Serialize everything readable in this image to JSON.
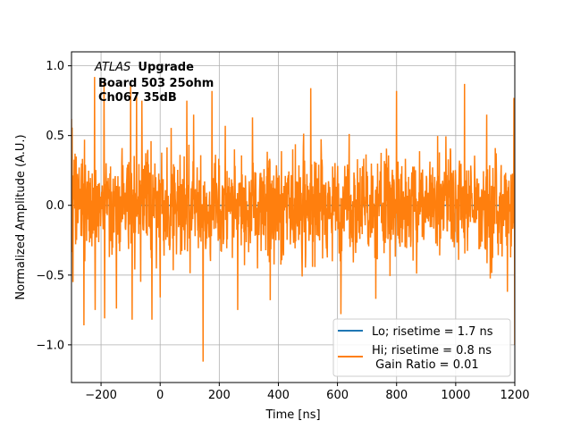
{
  "chart_data": {
    "type": "line",
    "xlabel": "Time [ns]",
    "ylabel": "Normalized Amplitude (A.U.)",
    "xlim": [
      -300,
      1200
    ],
    "ylim": [
      -1.27,
      1.1
    ],
    "xticks": [
      -200,
      0,
      200,
      400,
      600,
      800,
      1000,
      1200
    ],
    "xtick_labels": [
      "−200",
      "0",
      "200",
      "400",
      "600",
      "800",
      "1000",
      "1200"
    ],
    "yticks": [
      -1.0,
      -0.5,
      0.0,
      0.5,
      1.0
    ],
    "ytick_labels": [
      "−1.0",
      "−0.5",
      "0.0",
      "0.5",
      "1.0"
    ],
    "grid": true,
    "legend_position": "lower-right",
    "annotation": {
      "atlas": "ATLAS",
      "upgrade": "Upgrade",
      "line1": "Board 503 25ohm",
      "line2": "Ch067 35dB"
    },
    "series": [
      {
        "name": "Lo; risetime = 1.7 ns",
        "color": "#1f77b4",
        "x": [
          -300,
          1200
        ],
        "y": [
          0,
          0
        ]
      },
      {
        "name": "Hi; risetime = 0.8 ns\n Gain Ratio = 0.01",
        "color": "#ff7f0e",
        "x_range": [
          -300,
          1200
        ],
        "n_points": 1500,
        "seed": 503,
        "peaks": [
          {
            "x": -300,
            "y": 0.62
          },
          {
            "x": -295,
            "y": -0.55
          },
          {
            "x": -258,
            "y": -0.86
          },
          {
            "x": -222,
            "y": 0.92
          },
          {
            "x": -220,
            "y": -0.75
          },
          {
            "x": -190,
            "y": 0.88
          },
          {
            "x": -188,
            "y": -0.81
          },
          {
            "x": -148,
            "y": -0.74
          },
          {
            "x": -100,
            "y": 0.88
          },
          {
            "x": -95,
            "y": -0.82
          },
          {
            "x": -80,
            "y": 0.8
          },
          {
            "x": -62,
            "y": 0.75
          },
          {
            "x": -28,
            "y": -0.82
          },
          {
            "x": 0,
            "y": -0.66
          },
          {
            "x": 90,
            "y": 0.75
          },
          {
            "x": 113,
            "y": 0.65
          },
          {
            "x": 145,
            "y": -1.12
          },
          {
            "x": 175,
            "y": 0.82
          },
          {
            "x": 220,
            "y": 0.57
          },
          {
            "x": 262,
            "y": -0.75
          },
          {
            "x": 312,
            "y": 0.63
          },
          {
            "x": 372,
            "y": -0.68
          },
          {
            "x": 510,
            "y": 0.84
          },
          {
            "x": 612,
            "y": -0.78
          },
          {
            "x": 730,
            "y": -0.67
          },
          {
            "x": 800,
            "y": 0.82
          },
          {
            "x": 1030,
            "y": 0.87
          },
          {
            "x": 1105,
            "y": 0.65
          },
          {
            "x": 1175,
            "y": -0.62
          },
          {
            "x": 1197,
            "y": 0.77
          },
          {
            "x": 1200,
            "y": -1.0
          }
        ]
      }
    ]
  }
}
